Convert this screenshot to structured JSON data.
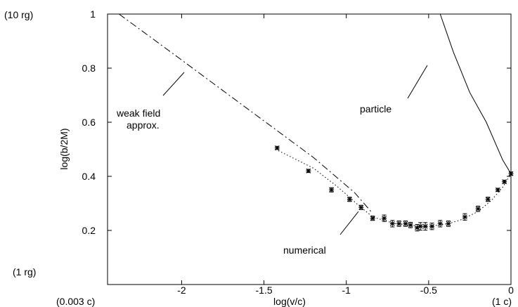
{
  "chart_data": {
    "type": "scatter",
    "xlabel": "log(v/c)",
    "ylabel": "log(b/2M)",
    "xlim": [
      -2.45,
      0
    ],
    "ylim": [
      0,
      1
    ],
    "x_ticks": [
      "-2",
      "-1.5",
      "-1",
      "-0.5",
      "0"
    ],
    "y_ticks": [
      "0.2",
      "0.4",
      "0.6",
      "0.8",
      "1"
    ],
    "x_tick_values": [
      -2,
      -1.5,
      -1,
      -0.5,
      0
    ],
    "y_tick_values": [
      0.2,
      0.4,
      0.6,
      0.8,
      1
    ],
    "secondary_labels": {
      "y_top": "(10 rg)",
      "y_bottom": "(1 rg)",
      "x_left": "(0.003 c)",
      "x_right": "(1 c)"
    },
    "annotations": {
      "weak_field_line1": "weak field",
      "weak_field_line2": "approx.",
      "particle": "particle",
      "numerical": "numerical"
    },
    "series": [
      {
        "style": "dash-dot",
        "x": [
          -2.38,
          -2.0,
          -1.6,
          -1.2,
          -0.95,
          -0.85
        ],
        "y": [
          1.0,
          0.83,
          0.65,
          0.47,
          0.34,
          0.27
        ]
      },
      {
        "style": "solid",
        "x": [
          -0.43,
          -0.35,
          -0.25,
          -0.15,
          -0.05,
          0.0
        ],
        "y": [
          1.0,
          0.86,
          0.71,
          0.6,
          0.46,
          0.41
        ]
      },
      {
        "style": "dotted",
        "x": [
          -1.43,
          -1.2,
          -1.05,
          -0.92,
          -0.84,
          -0.76,
          -0.7,
          -0.62,
          -0.56,
          -0.5,
          -0.44,
          -0.38,
          -0.3,
          -0.2,
          -0.12,
          -0.05,
          0.0
        ],
        "y": [
          0.5,
          0.43,
          0.36,
          0.29,
          0.25,
          0.235,
          0.225,
          0.22,
          0.215,
          0.215,
          0.22,
          0.225,
          0.24,
          0.27,
          0.31,
          0.36,
          0.41
        ]
      },
      {
        "style": "points-errorbars",
        "x": [
          -1.42,
          -1.23,
          -1.09,
          -0.98,
          -0.91,
          -0.84,
          -0.77,
          -0.72,
          -0.68,
          -0.64,
          -0.61,
          -0.57,
          -0.55,
          -0.52,
          -0.48,
          -0.43,
          -0.38,
          -0.28,
          -0.2,
          -0.14,
          -0.08,
          -0.04,
          0.0
        ],
        "y": [
          0.505,
          0.42,
          0.35,
          0.315,
          0.285,
          0.245,
          0.245,
          0.225,
          0.225,
          0.225,
          0.22,
          0.21,
          0.215,
          0.215,
          0.215,
          0.225,
          0.225,
          0.25,
          0.28,
          0.315,
          0.35,
          0.38,
          0.41
        ],
        "err": [
          0.006,
          0.006,
          0.008,
          0.008,
          0.008,
          0.008,
          0.012,
          0.012,
          0.01,
          0.01,
          0.01,
          0.012,
          0.014,
          0.014,
          0.012,
          0.012,
          0.01,
          0.012,
          0.01,
          0.008,
          0.006,
          0.006,
          0.006
        ]
      }
    ],
    "grid": false,
    "legend": "none"
  }
}
